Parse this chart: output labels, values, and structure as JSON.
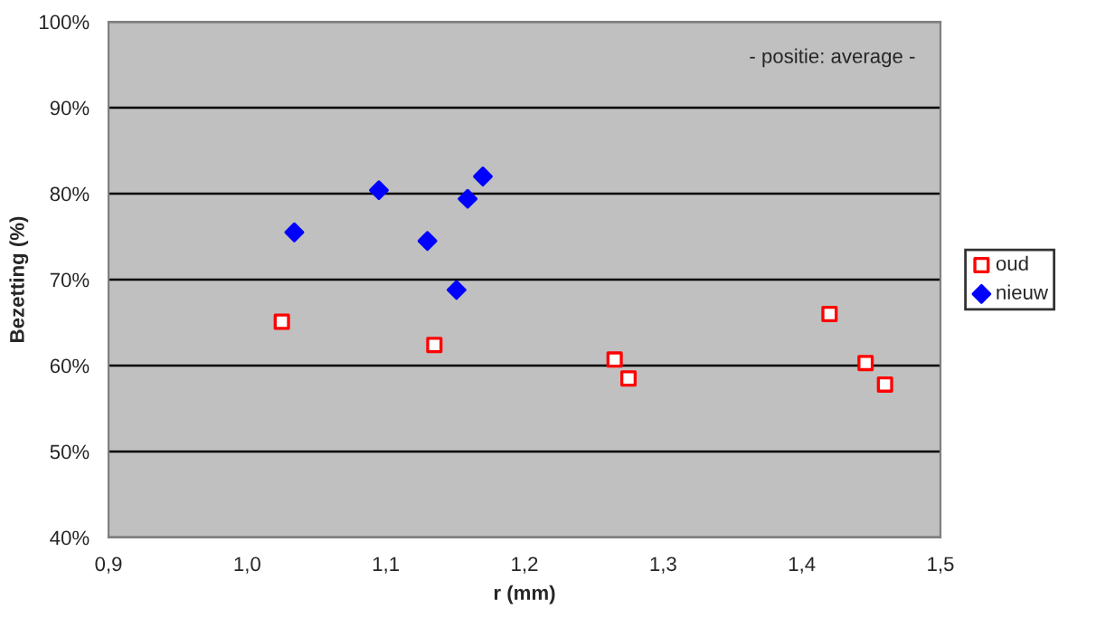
{
  "chart_data": {
    "type": "scatter",
    "xlabel": "r (mm)",
    "ylabel": "Bezetting (%)",
    "annotations": [
      "- positie: average -"
    ],
    "series": [
      {
        "name": "oud",
        "color": "#ff0000",
        "marker": "square",
        "x": [
          1.025,
          1.135,
          1.265,
          1.275,
          1.42,
          1.446,
          1.46
        ],
        "values": [
          65.1,
          62.4,
          60.7,
          58.5,
          66.0,
          60.3,
          57.8
        ]
      },
      {
        "name": "nieuw",
        "color": "#0000ff",
        "marker": "diamond",
        "x": [
          1.034,
          1.095,
          1.13,
          1.151,
          1.159,
          1.17
        ],
        "values": [
          75.5,
          80.4,
          74.5,
          68.8,
          79.4,
          82.0
        ]
      }
    ],
    "xlim": [
      0.9,
      1.5
    ],
    "xticks": [
      {
        "value": 0.9,
        "label": "0,9"
      },
      {
        "value": 1.0,
        "label": "1,0"
      },
      {
        "value": 1.1,
        "label": "1,1"
      },
      {
        "value": 1.2,
        "label": "1,2"
      },
      {
        "value": 1.3,
        "label": "1,3"
      },
      {
        "value": 1.4,
        "label": "1,4"
      },
      {
        "value": 1.5,
        "label": "1,5"
      }
    ],
    "ylim": [
      40,
      100
    ],
    "yticks": [
      {
        "value": 40,
        "label": "40%"
      },
      {
        "value": 50,
        "label": "50%"
      },
      {
        "value": 60,
        "label": "60%"
      },
      {
        "value": 70,
        "label": "70%"
      },
      {
        "value": 80,
        "label": "80%"
      },
      {
        "value": 90,
        "label": "90%"
      },
      {
        "value": 100,
        "label": "100%"
      }
    ],
    "grid": "y",
    "legend": "right"
  }
}
